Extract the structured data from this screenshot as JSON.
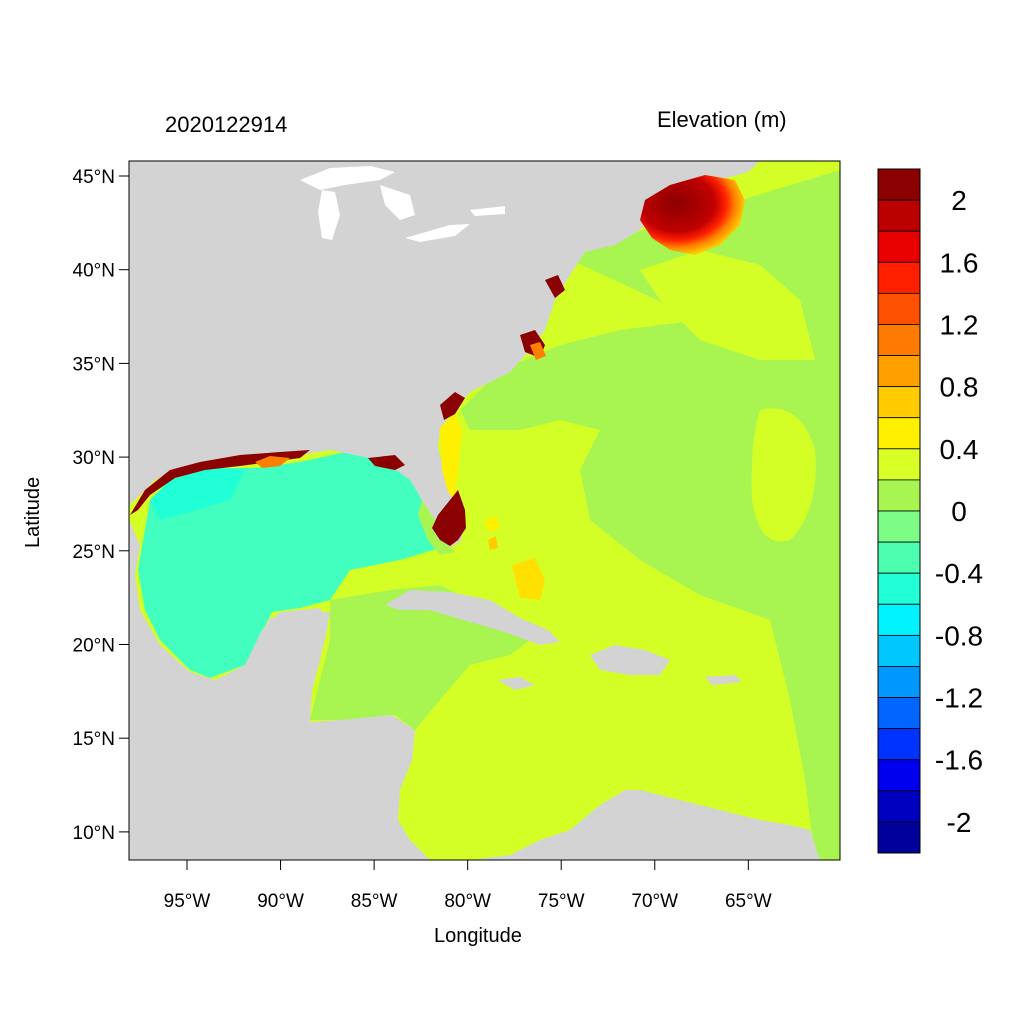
{
  "titles": {
    "left": "2020122914",
    "right": "Elevation (m)"
  },
  "axes": {
    "xlabel": "Longitude",
    "ylabel": "Latitude",
    "x_ticks": [
      {
        "value": -95,
        "label": "95°W"
      },
      {
        "value": -90,
        "label": "90°W"
      },
      {
        "value": -85,
        "label": "85°W"
      },
      {
        "value": -80,
        "label": "80°W"
      },
      {
        "value": -75,
        "label": "75°W"
      },
      {
        "value": -70,
        "label": "70°W"
      },
      {
        "value": -65,
        "label": "65°W"
      }
    ],
    "y_ticks": [
      {
        "value": 45,
        "label": "45°N"
      },
      {
        "value": 40,
        "label": "40°N"
      },
      {
        "value": 35,
        "label": "35°N"
      },
      {
        "value": 30,
        "label": "30°N"
      },
      {
        "value": 25,
        "label": "25°N"
      },
      {
        "value": 20,
        "label": "20°N"
      },
      {
        "value": 15,
        "label": "15°N"
      },
      {
        "value": 10,
        "label": "10°N"
      }
    ],
    "lon_range": [
      -98.1,
      -60.1
    ],
    "lat_range": [
      8.5,
      45.8
    ]
  },
  "colorbar": {
    "levels_top_to_bottom": [
      "#8b0000",
      "#bb0000",
      "#e80000",
      "#ff2000",
      "#ff4f00",
      "#ff7a00",
      "#ffa000",
      "#ffcc00",
      "#fff000",
      "#d8ff26",
      "#a8f552",
      "#7dfc86",
      "#4cffb0",
      "#20ffd6",
      "#00f3ff",
      "#00c8ff",
      "#0098ff",
      "#0066ff",
      "#0033ff",
      "#0000ee",
      "#0000c0",
      "#00009a"
    ],
    "labels": [
      "2",
      "1.6",
      "1.2",
      "0.8",
      "0.4",
      "0",
      "-0.4",
      "-0.8",
      "-1.2",
      "-1.6",
      "-2"
    ]
  },
  "map": {
    "land_color": "#d3d3d3",
    "lake_color": "#ffffff",
    "regions": [
      {
        "name": "gulf-of-mexico",
        "color": "#43ffbf"
      },
      {
        "name": "caribbean-sea",
        "color": "#a8f552"
      },
      {
        "name": "open-atlantic",
        "color": "#d4ff26"
      },
      {
        "name": "northeast-surge",
        "color": "#8b0000"
      },
      {
        "name": "south-florida-surge",
        "color": "#8b0000"
      }
    ]
  }
}
